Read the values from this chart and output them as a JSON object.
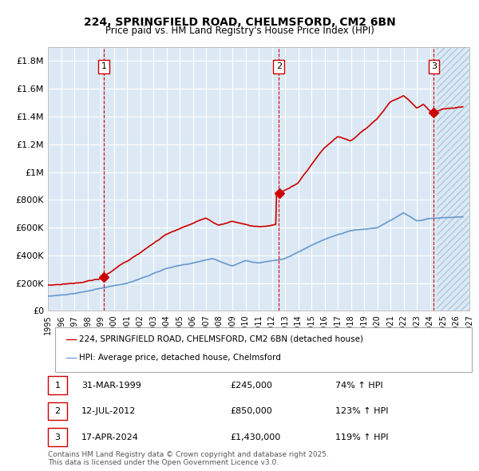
{
  "title": "224, SPRINGFIELD ROAD, CHELMSFORD, CM2 6BN",
  "subtitle": "Price paid vs. HM Land Registry's House Price Index (HPI)",
  "xlim_start": 1995.0,
  "xlim_end": 2027.0,
  "ylim": [
    0,
    1900000
  ],
  "yticks": [
    0,
    200000,
    400000,
    600000,
    800000,
    1000000,
    1200000,
    1400000,
    1600000,
    1800000
  ],
  "ytick_labels": [
    "£0",
    "£200K",
    "£400K",
    "£600K",
    "£800K",
    "£1M",
    "£1.2M",
    "£1.4M",
    "£1.6M",
    "£1.8M"
  ],
  "bg_color": "#dce9f5",
  "plot_bg_color": "#dce9f5",
  "hatch_color": "#b0c4d8",
  "red_line_color": "#cc0000",
  "blue_line_color": "#6699cc",
  "vline_color": "#cc0000",
  "marker_color": "#cc0000",
  "legend_label_red": "224, SPRINGFIELD ROAD, CHELMSFORD, CM2 6BN (detached house)",
  "legend_label_blue": "HPI: Average price, detached house, Chelmsford",
  "sale1_date": 1999.247,
  "sale1_price": 245000,
  "sale1_label": "1",
  "sale2_date": 2012.534,
  "sale2_price": 850000,
  "sale2_label": "2",
  "sale3_date": 2024.296,
  "sale3_price": 1430000,
  "sale3_label": "3",
  "footer": "Contains HM Land Registry data © Crown copyright and database right 2025.\nThis data is licensed under the Open Government Licence v3.0.",
  "table_rows": [
    [
      "1",
      "31-MAR-1999",
      "£245,000",
      "74% ↑ HPI"
    ],
    [
      "2",
      "12-JUL-2012",
      "£850,000",
      "123% ↑ HPI"
    ],
    [
      "3",
      "17-APR-2024",
      "£1,430,000",
      "119% ↑ HPI"
    ]
  ]
}
